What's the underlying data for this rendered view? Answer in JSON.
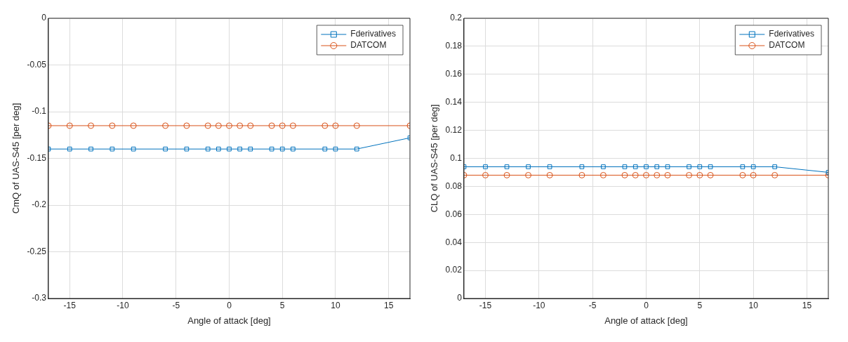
{
  "chart_data": [
    {
      "type": "line",
      "xlabel": "Angle of attack [deg]",
      "ylabel": "CmQ of UAS-S45 [per deg]",
      "x": [
        -17,
        -15,
        -13,
        -11,
        -9,
        -6,
        -4,
        -2,
        -1,
        0,
        1,
        2,
        4,
        5,
        6,
        9,
        10,
        12,
        17
      ],
      "xlim": [
        -17,
        17
      ],
      "xticks": [
        -15,
        -10,
        -5,
        0,
        5,
        10,
        15
      ],
      "ylim": [
        -0.3,
        0
      ],
      "yticks": [
        -0.3,
        -0.25,
        -0.2,
        -0.15,
        -0.1,
        -0.05,
        0
      ],
      "grid": true,
      "legend": "top right",
      "series": [
        {
          "name": "Fderivatives",
          "color": "#0072bd",
          "marker": "square",
          "values": [
            -0.14,
            -0.14,
            -0.14,
            -0.14,
            -0.14,
            -0.14,
            -0.14,
            -0.14,
            -0.14,
            -0.14,
            -0.14,
            -0.14,
            -0.14,
            -0.14,
            -0.14,
            -0.14,
            -0.14,
            -0.14,
            -0.128
          ]
        },
        {
          "name": "DATCOM",
          "color": "#d95319",
          "marker": "circle",
          "values": [
            -0.115,
            -0.115,
            -0.115,
            -0.115,
            -0.115,
            -0.115,
            -0.115,
            -0.115,
            -0.115,
            -0.115,
            -0.115,
            -0.115,
            -0.115,
            -0.115,
            -0.115,
            -0.115,
            -0.115,
            -0.115,
            -0.115
          ]
        }
      ]
    },
    {
      "type": "line",
      "xlabel": "Angle of attack [deg]",
      "ylabel": "CLQ of UAS-S45 [per deg]",
      "x": [
        -17,
        -15,
        -13,
        -11,
        -9,
        -6,
        -4,
        -2,
        -1,
        0,
        1,
        2,
        4,
        5,
        6,
        9,
        10,
        12,
        17
      ],
      "xlim": [
        -17,
        17
      ],
      "xticks": [
        -15,
        -10,
        -5,
        0,
        5,
        10,
        15
      ],
      "ylim": [
        0,
        0.2
      ],
      "yticks": [
        0,
        0.02,
        0.04,
        0.06,
        0.08,
        0.1,
        0.12,
        0.14,
        0.16,
        0.18,
        0.2
      ],
      "grid": true,
      "legend": "top right",
      "series": [
        {
          "name": "Fderivatives",
          "color": "#0072bd",
          "marker": "square",
          "values": [
            0.094,
            0.094,
            0.094,
            0.094,
            0.094,
            0.094,
            0.094,
            0.094,
            0.094,
            0.094,
            0.094,
            0.094,
            0.094,
            0.094,
            0.094,
            0.094,
            0.094,
            0.094,
            0.09
          ]
        },
        {
          "name": "DATCOM",
          "color": "#d95319",
          "marker": "circle",
          "values": [
            0.088,
            0.088,
            0.088,
            0.088,
            0.088,
            0.088,
            0.088,
            0.088,
            0.088,
            0.088,
            0.088,
            0.088,
            0.088,
            0.088,
            0.088,
            0.088,
            0.088,
            0.088,
            0.088
          ]
        }
      ]
    }
  ]
}
